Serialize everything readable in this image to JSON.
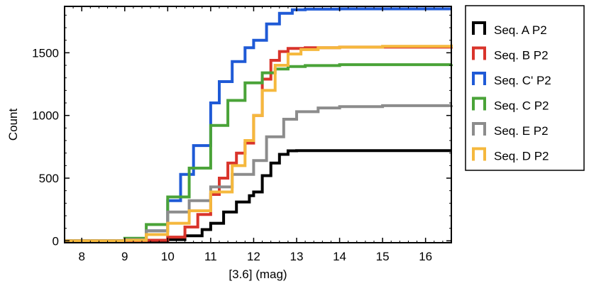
{
  "chart_data": {
    "type": "line",
    "title": "",
    "xlabel": "[3.6] (mag)",
    "ylabel": "Count",
    "xlim": [
      7.6,
      16.6
    ],
    "ylim": [
      -15,
      1870
    ],
    "xticks": [
      8,
      9,
      10,
      11,
      12,
      13,
      14,
      15,
      16
    ],
    "yticks": [
      0,
      500,
      1000,
      1500
    ],
    "grid": false,
    "legend_position": "outside-right",
    "series": [
      {
        "name": "Seq. A P2",
        "color": "#000000",
        "x": [
          7.6,
          8.5,
          9.5,
          10.0,
          10.4,
          10.8,
          11.0,
          11.3,
          11.6,
          11.9,
          12.0,
          12.2,
          12.4,
          12.6,
          12.8,
          13.0,
          16.6
        ],
        "y": [
          0,
          0,
          0,
          10,
          40,
          90,
          140,
          230,
          310,
          360,
          390,
          520,
          620,
          690,
          718,
          720,
          720
        ]
      },
      {
        "name": "Seq. B P2",
        "color": "#d9342b",
        "x": [
          7.6,
          8.5,
          9.5,
          10.0,
          10.4,
          10.7,
          11.0,
          11.2,
          11.4,
          11.6,
          11.8,
          12.0,
          12.2,
          12.4,
          12.6,
          12.8,
          13.2,
          14.0,
          16.6
        ],
        "y": [
          0,
          0,
          5,
          30,
          110,
          210,
          370,
          500,
          620,
          700,
          780,
          1000,
          1290,
          1440,
          1510,
          1535,
          1540,
          1545,
          1550
        ]
      },
      {
        "name": "Seq. C' P2",
        "color": "#1f5ad6",
        "x": [
          7.6,
          8.5,
          9.0,
          9.5,
          10.0,
          10.3,
          10.6,
          11.0,
          11.2,
          11.5,
          11.8,
          12.0,
          12.3,
          12.6,
          12.9,
          13.2,
          14.0,
          16.6
        ],
        "y": [
          0,
          0,
          5,
          80,
          320,
          530,
          760,
          1100,
          1270,
          1430,
          1540,
          1600,
          1730,
          1815,
          1843,
          1848,
          1850,
          1850
        ]
      },
      {
        "name": "Seq. C P2",
        "color": "#4aa338",
        "x": [
          7.6,
          8.5,
          9.0,
          9.5,
          10.0,
          10.5,
          11.0,
          11.4,
          11.8,
          12.2,
          12.5,
          12.8,
          13.2,
          14.0,
          16.6
        ],
        "y": [
          0,
          0,
          20,
          130,
          350,
          580,
          920,
          1120,
          1260,
          1340,
          1370,
          1390,
          1398,
          1405,
          1408
        ]
      },
      {
        "name": "Seq. E P2",
        "color": "#8c8c8c",
        "x": [
          7.6,
          8.5,
          9.0,
          9.5,
          10.0,
          10.5,
          11.0,
          11.5,
          12.0,
          12.3,
          12.7,
          13.0,
          13.5,
          14.0,
          15.0,
          16.6
        ],
        "y": [
          0,
          0,
          10,
          80,
          230,
          320,
          430,
          530,
          640,
          830,
          970,
          1030,
          1060,
          1070,
          1078,
          1082
        ]
      },
      {
        "name": "Seq. D P2",
        "color": "#f5b83d",
        "x": [
          7.6,
          8.5,
          9.0,
          9.5,
          10.0,
          10.5,
          11.0,
          11.5,
          11.8,
          12.0,
          12.2,
          12.5,
          12.8,
          13.1,
          13.5,
          14.0,
          15.0,
          16.6
        ],
        "y": [
          0,
          0,
          5,
          50,
          140,
          240,
          390,
          600,
          800,
          1000,
          1200,
          1400,
          1490,
          1525,
          1540,
          1545,
          1552,
          1565
        ]
      }
    ]
  }
}
